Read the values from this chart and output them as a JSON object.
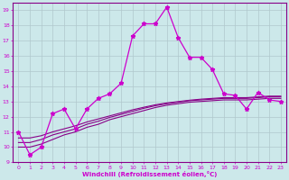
{
  "xlabel": "Windchill (Refroidissement éolien,°C)",
  "bg_color": "#cce8ea",
  "grid_color": "#b0c8cc",
  "line_color_dark": "#880088",
  "line_color_bright": "#cc00cc",
  "xlim": [
    -0.5,
    23.5
  ],
  "ylim": [
    9,
    19.5
  ],
  "yticks": [
    9,
    10,
    11,
    12,
    13,
    14,
    15,
    16,
    17,
    18,
    19
  ],
  "xticks": [
    0,
    1,
    2,
    3,
    4,
    5,
    6,
    7,
    8,
    9,
    10,
    11,
    12,
    13,
    14,
    15,
    16,
    17,
    18,
    19,
    20,
    21,
    22,
    23
  ],
  "series1_x": [
    0,
    1,
    2,
    3,
    4,
    5,
    6,
    7,
    8,
    9,
    10,
    11,
    12,
    13,
    14,
    15,
    16,
    17,
    18,
    19,
    20,
    21,
    22,
    23
  ],
  "series1_y": [
    11.0,
    9.5,
    10.0,
    12.2,
    12.5,
    11.2,
    12.5,
    13.2,
    13.5,
    14.2,
    17.3,
    18.1,
    18.1,
    19.2,
    17.2,
    15.9,
    15.9,
    15.1,
    13.5,
    13.4,
    12.5,
    13.6,
    13.1,
    13.0
  ],
  "series2_x": [
    0,
    1,
    2,
    3,
    4,
    5,
    6,
    7,
    8,
    9,
    10,
    11,
    12,
    13,
    14,
    15,
    16,
    17,
    18,
    19,
    20,
    21,
    22,
    23
  ],
  "series2_y": [
    10.0,
    10.0,
    10.2,
    10.5,
    10.8,
    11.0,
    11.3,
    11.5,
    11.8,
    12.0,
    12.2,
    12.4,
    12.6,
    12.75,
    12.85,
    12.95,
    13.0,
    13.05,
    13.1,
    13.1,
    13.1,
    13.15,
    13.2,
    13.2
  ],
  "series3_x": [
    0,
    1,
    2,
    3,
    4,
    5,
    6,
    7,
    8,
    9,
    10,
    11,
    12,
    13,
    14,
    15,
    16,
    17,
    18,
    19,
    20,
    21,
    22,
    23
  ],
  "series3_y": [
    10.3,
    10.3,
    10.5,
    10.8,
    11.0,
    11.2,
    11.5,
    11.7,
    11.95,
    12.15,
    12.35,
    12.55,
    12.72,
    12.85,
    12.95,
    13.05,
    13.1,
    13.15,
    13.2,
    13.2,
    13.2,
    13.25,
    13.3,
    13.3
  ],
  "series4_x": [
    0,
    1,
    2,
    3,
    4,
    5,
    6,
    7,
    8,
    9,
    10,
    11,
    12,
    13,
    14,
    15,
    16,
    17,
    18,
    19,
    20,
    21,
    22,
    23
  ],
  "series4_y": [
    10.6,
    10.6,
    10.75,
    11.0,
    11.2,
    11.4,
    11.65,
    11.85,
    12.05,
    12.25,
    12.45,
    12.62,
    12.78,
    12.9,
    12.99,
    13.08,
    13.15,
    13.2,
    13.25,
    13.25,
    13.25,
    13.3,
    13.35,
    13.35
  ]
}
